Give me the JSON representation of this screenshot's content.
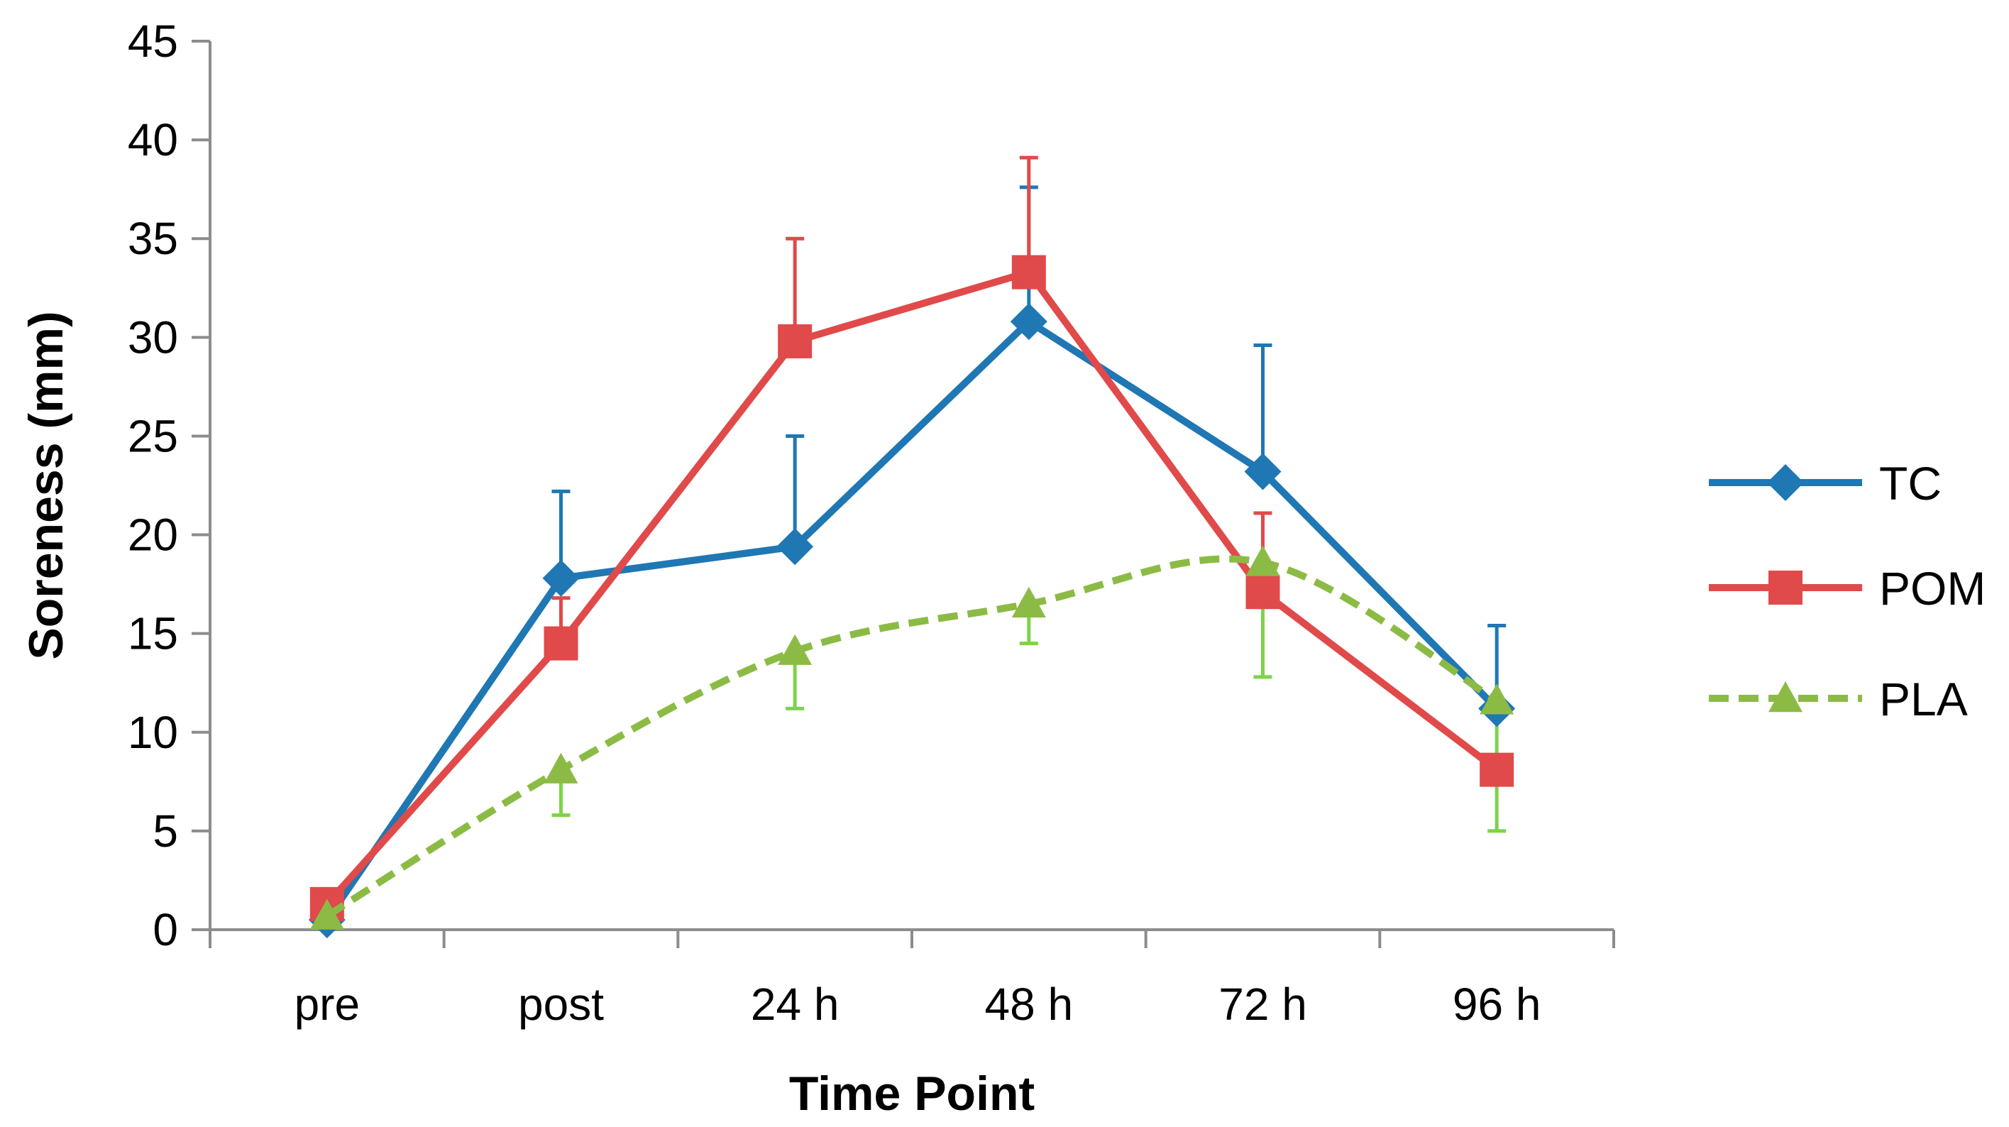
{
  "chart_data": {
    "type": "line",
    "title": "",
    "xlabel": "Time Point",
    "ylabel": "Soreness (mm)",
    "categories": [
      "pre",
      "post",
      "24 h",
      "48 h",
      "72 h",
      "96 h"
    ],
    "ylim": [
      0,
      45
    ],
    "yticks": [
      0,
      5,
      10,
      15,
      20,
      25,
      30,
      35,
      40,
      45
    ],
    "grid": false,
    "legend_position": "right",
    "series": [
      {
        "name": "TC",
        "color": "#1f77b4",
        "marker": "diamond",
        "dash": "solid",
        "values": [
          0.5,
          17.8,
          19.4,
          30.8,
          23.2,
          11.2
        ],
        "error_upper": [
          0.5,
          22.2,
          25.0,
          37.6,
          29.6,
          15.4
        ],
        "error_direction": "up"
      },
      {
        "name": "POM",
        "color": "#e04a4a",
        "marker": "square",
        "dash": "solid",
        "values": [
          1.3,
          14.5,
          29.8,
          33.3,
          17.1,
          8.1
        ],
        "error_upper": [
          1.3,
          16.8,
          35.0,
          39.1,
          21.1,
          8.1
        ],
        "error_direction": "up"
      },
      {
        "name": "PLA",
        "color": "#8cbb45",
        "error_color": "#7dd34a",
        "marker": "triangle",
        "dash": "dashed",
        "values": [
          0.7,
          8.1,
          14.1,
          16.5,
          18.6,
          11.6
        ],
        "error_lower": [
          0.7,
          5.8,
          11.2,
          14.5,
          12.8,
          5.0
        ],
        "error_direction": "down"
      }
    ]
  }
}
